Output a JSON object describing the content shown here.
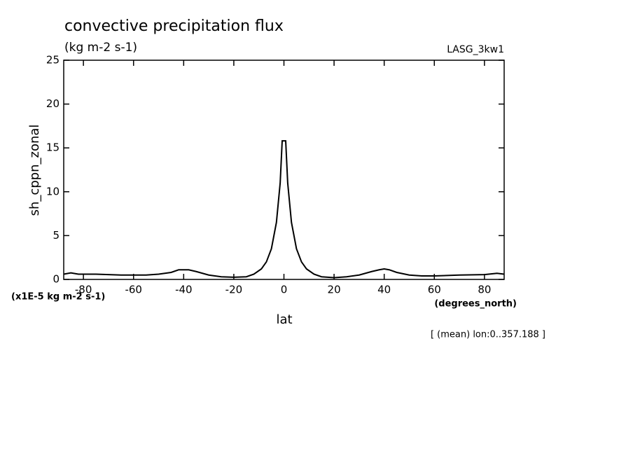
{
  "chart_data": {
    "type": "line",
    "title": "convective precipitation flux",
    "subtitle": "(kg m-2 s-1)",
    "dataset": "LASG_3kw1",
    "y_label": "sh_cppn_zonal",
    "y_units": "(x1E-5 kg m-2 s-1)",
    "x_label": "lat",
    "x_units": "(degrees_north)",
    "note": "[ (mean) lon:0..357.188 ]",
    "x": [
      -87.86,
      -85,
      -82,
      -75,
      -65,
      -55,
      -50,
      -45,
      -42,
      -38,
      -35,
      -30,
      -25,
      -20,
      -15,
      -12,
      -9,
      -7,
      -5,
      -3,
      -1.5,
      -0.7,
      0.7,
      1.5,
      3,
      5,
      7,
      9,
      12,
      15,
      20,
      25,
      30,
      35,
      38,
      40,
      42,
      45,
      50,
      55,
      60,
      70,
      80,
      85,
      87.86
    ],
    "series": [
      {
        "color": "#000000",
        "values": [
          0.6,
          0.75,
          0.6,
          0.6,
          0.5,
          0.5,
          0.6,
          0.8,
          1.1,
          1.1,
          0.9,
          0.5,
          0.3,
          0.25,
          0.3,
          0.6,
          1.2,
          2.0,
          3.5,
          6.5,
          11,
          15.8,
          15.8,
          11,
          6.5,
          3.5,
          2.0,
          1.2,
          0.6,
          0.3,
          0.2,
          0.3,
          0.5,
          0.9,
          1.1,
          1.2,
          1.1,
          0.8,
          0.5,
          0.4,
          0.4,
          0.5,
          0.55,
          0.7,
          0.6
        ]
      }
    ],
    "xlim": [
      -87.86,
      87.86
    ],
    "ylim": [
      0,
      25
    ],
    "xticks": [
      -80,
      -60,
      -40,
      -20,
      0,
      20,
      40,
      60,
      80
    ],
    "yticks": [
      0,
      5,
      10,
      15,
      20,
      25
    ]
  }
}
